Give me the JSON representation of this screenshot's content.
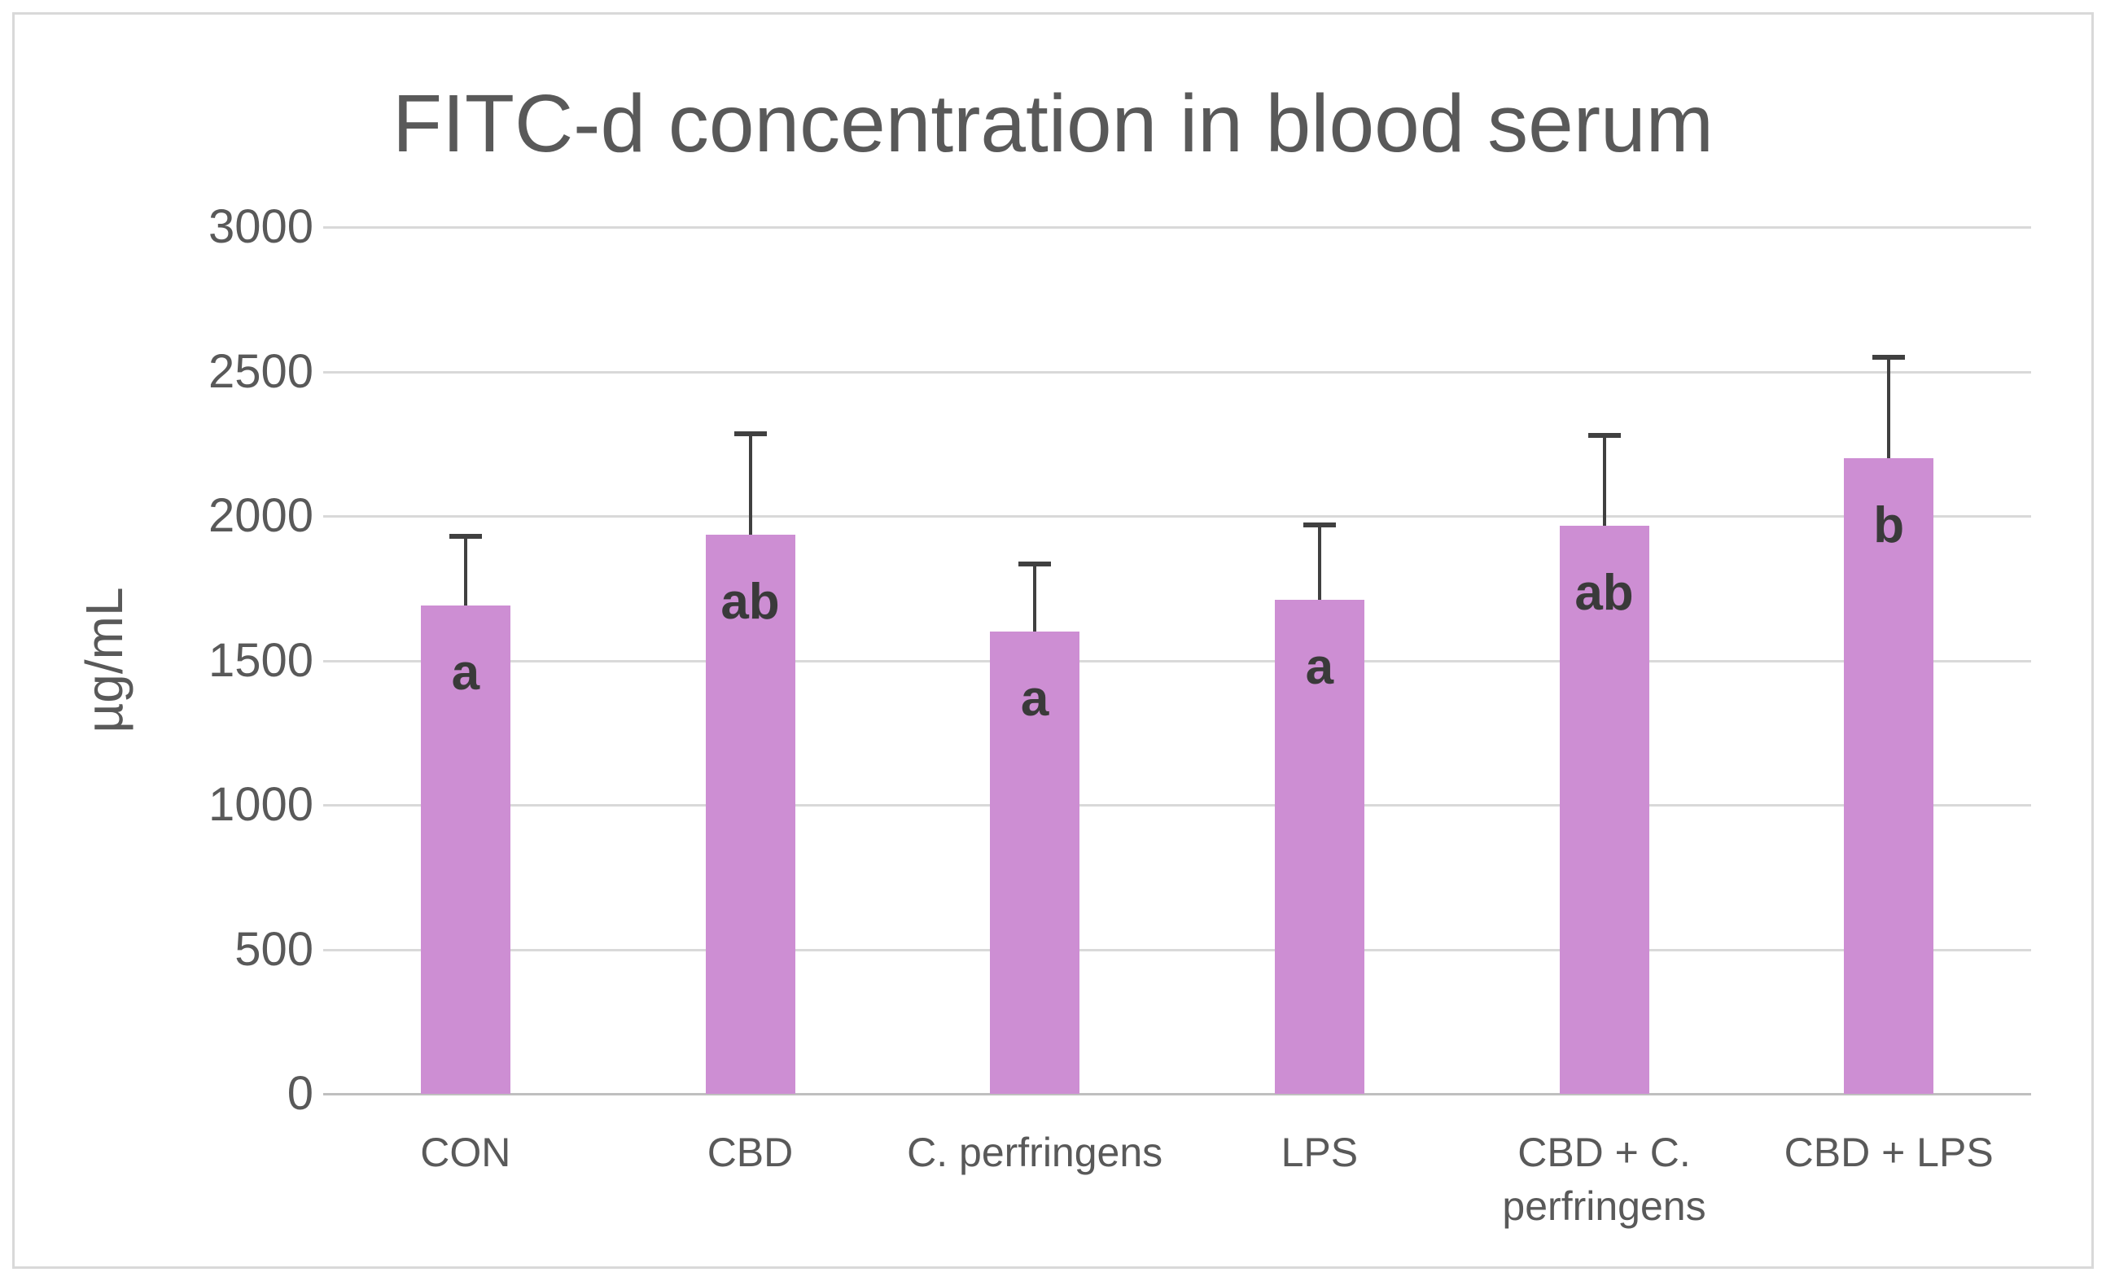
{
  "chart_data": {
    "type": "bar",
    "title": "FITC-d concentration in blood serum",
    "ylabel": "µg/mL",
    "xlabel": "",
    "categories": [
      "CON",
      "CBD",
      "C. perfringens",
      "LPS",
      "CBD + C. perfringens",
      "CBD + LPS"
    ],
    "values": [
      1690,
      1935,
      1600,
      1710,
      1965,
      2200
    ],
    "error_plus": [
      240,
      350,
      235,
      260,
      315,
      350
    ],
    "sig_letters": [
      "a",
      "ab",
      "a",
      "a",
      "ab",
      "b"
    ],
    "ylim": [
      0,
      3000
    ],
    "yticks": [
      0,
      500,
      1000,
      1500,
      2000,
      2500,
      3000
    ],
    "grid": true,
    "legend_position": "none",
    "colors": {
      "bar_fill": "#CD8ED3",
      "error_bar": "#404040",
      "sig_letter": "#3A3A3A",
      "gridline": "#D9D9D9",
      "axis_baseline": "#BFBFBF",
      "text": "#595959",
      "frame_border": "#D9D9D9",
      "background": "#FFFFFF"
    }
  }
}
